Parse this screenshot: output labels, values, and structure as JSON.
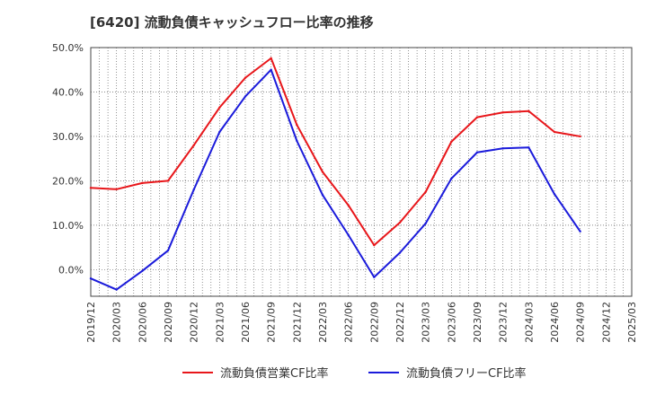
{
  "title": "[6420]  流動負債キャッシュフロー比率の推移",
  "chart_data": {
    "type": "line",
    "x": [
      "2019/12",
      "2020/03",
      "2020/06",
      "2020/09",
      "2020/12",
      "2021/03",
      "2021/06",
      "2021/09",
      "2021/12",
      "2022/03",
      "2022/06",
      "2022/09",
      "2022/12",
      "2023/03",
      "2023/06",
      "2023/09",
      "2023/12",
      "2024/03",
      "2024/06",
      "2024/09",
      "2024/12",
      "2025/03"
    ],
    "series": [
      {
        "name": "流動負債営業CF比率",
        "color": "#e8161a",
        "values": [
          18.4,
          18.1,
          19.5,
          20.0,
          28.0,
          36.5,
          43.2,
          47.6,
          32.6,
          22.0,
          14.5,
          5.5,
          10.6,
          17.5,
          28.8,
          34.3,
          35.4,
          35.7,
          31.0,
          30.0,
          null,
          null
        ]
      },
      {
        "name": "流動負債フリーCF比率",
        "color": "#1b1bdb",
        "values": [
          -2.0,
          -4.5,
          -0.3,
          4.3,
          18.0,
          31.0,
          39.0,
          45.0,
          29.0,
          16.8,
          7.8,
          -1.7,
          3.8,
          10.4,
          20.5,
          26.4,
          27.3,
          27.5,
          17.0,
          8.6,
          null,
          null
        ]
      }
    ],
    "yticks": [
      "0.0%",
      "10.0%",
      "20.0%",
      "30.0%",
      "40.0%",
      "50.0%"
    ],
    "ylim": [
      -6,
      50
    ],
    "grid": true,
    "legend": "bottom"
  }
}
